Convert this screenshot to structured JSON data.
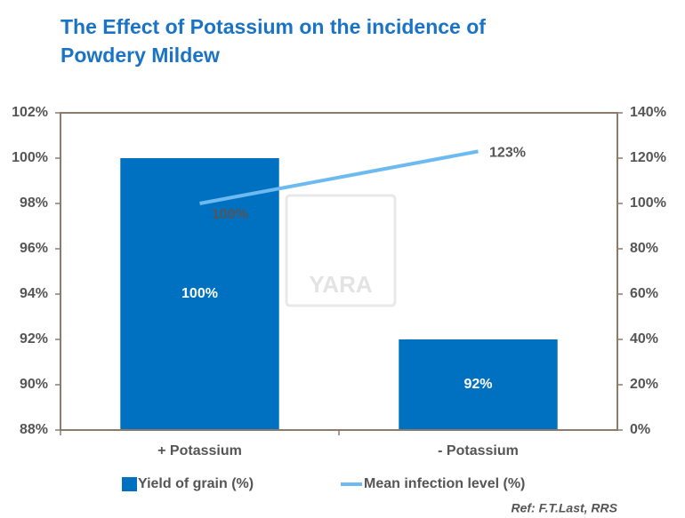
{
  "chart_data": {
    "type": "bar",
    "title": "The Effect of Potassium on the incidence of Powdery Mildew",
    "categories": [
      "+ Potassium",
      "- Potassium"
    ],
    "series": [
      {
        "name": "Yield of grain (%)",
        "color": "#0070c0",
        "values": [
          100,
          92
        ],
        "value_labels": [
          "100%",
          "92%"
        ]
      },
      {
        "name": "Mean infection level (%)",
        "type": "line",
        "axis": "y2",
        "color": "#6cbaf0",
        "values": [
          100,
          123
        ],
        "value_labels": [
          "100%",
          "123%"
        ]
      }
    ],
    "ylim": [
      88,
      102
    ],
    "yticks": [
      {
        "value": 88,
        "label": "88%"
      },
      {
        "value": 90,
        "label": "90%"
      },
      {
        "value": 92,
        "label": "92%"
      },
      {
        "value": 94,
        "label": "94%"
      },
      {
        "value": 96,
        "label": "96%"
      },
      {
        "value": 98,
        "label": "98%"
      },
      {
        "value": 100,
        "label": "100%"
      },
      {
        "value": 102,
        "label": "102%"
      }
    ],
    "y2lim": [
      0,
      140
    ],
    "y2ticks": [
      {
        "value": 0,
        "label": "0%"
      },
      {
        "value": 20,
        "label": "20%"
      },
      {
        "value": 40,
        "label": "40%"
      },
      {
        "value": 60,
        "label": "60%"
      },
      {
        "value": 80,
        "label": "80%"
      },
      {
        "value": 100,
        "label": "100%"
      },
      {
        "value": 120,
        "label": "120%"
      },
      {
        "value": 140,
        "label": "140%"
      }
    ],
    "grid": false,
    "legend": "bottom",
    "watermark": "YARA",
    "source": "Ref: F.T.Last, RRS"
  }
}
